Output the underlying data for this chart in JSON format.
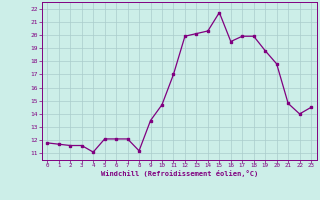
{
  "x": [
    0,
    1,
    2,
    3,
    4,
    5,
    6,
    7,
    8,
    9,
    10,
    11,
    12,
    13,
    14,
    15,
    16,
    17,
    18,
    19,
    20,
    21,
    22,
    23
  ],
  "y": [
    11.8,
    11.7,
    11.6,
    11.6,
    11.1,
    12.1,
    12.1,
    12.1,
    11.2,
    13.5,
    14.7,
    17.0,
    19.9,
    20.1,
    20.3,
    21.7,
    19.5,
    19.9,
    19.9,
    18.8,
    17.8,
    14.8,
    14.0,
    14.5
  ],
  "line_color": "#800080",
  "marker": "s",
  "markersize": 1.8,
  "linewidth": 0.9,
  "bg_color": "#cceee8",
  "grid_color": "#aacccc",
  "xlabel": "Windchill (Refroidissement éolien,°C)",
  "xlim": [
    -0.5,
    23.5
  ],
  "ylim": [
    10.5,
    22.5
  ],
  "yticks": [
    11,
    12,
    13,
    14,
    15,
    16,
    17,
    18,
    19,
    20,
    21,
    22
  ],
  "xticks": [
    0,
    1,
    2,
    3,
    4,
    5,
    6,
    7,
    8,
    9,
    10,
    11,
    12,
    13,
    14,
    15,
    16,
    17,
    18,
    19,
    20,
    21,
    22,
    23
  ]
}
